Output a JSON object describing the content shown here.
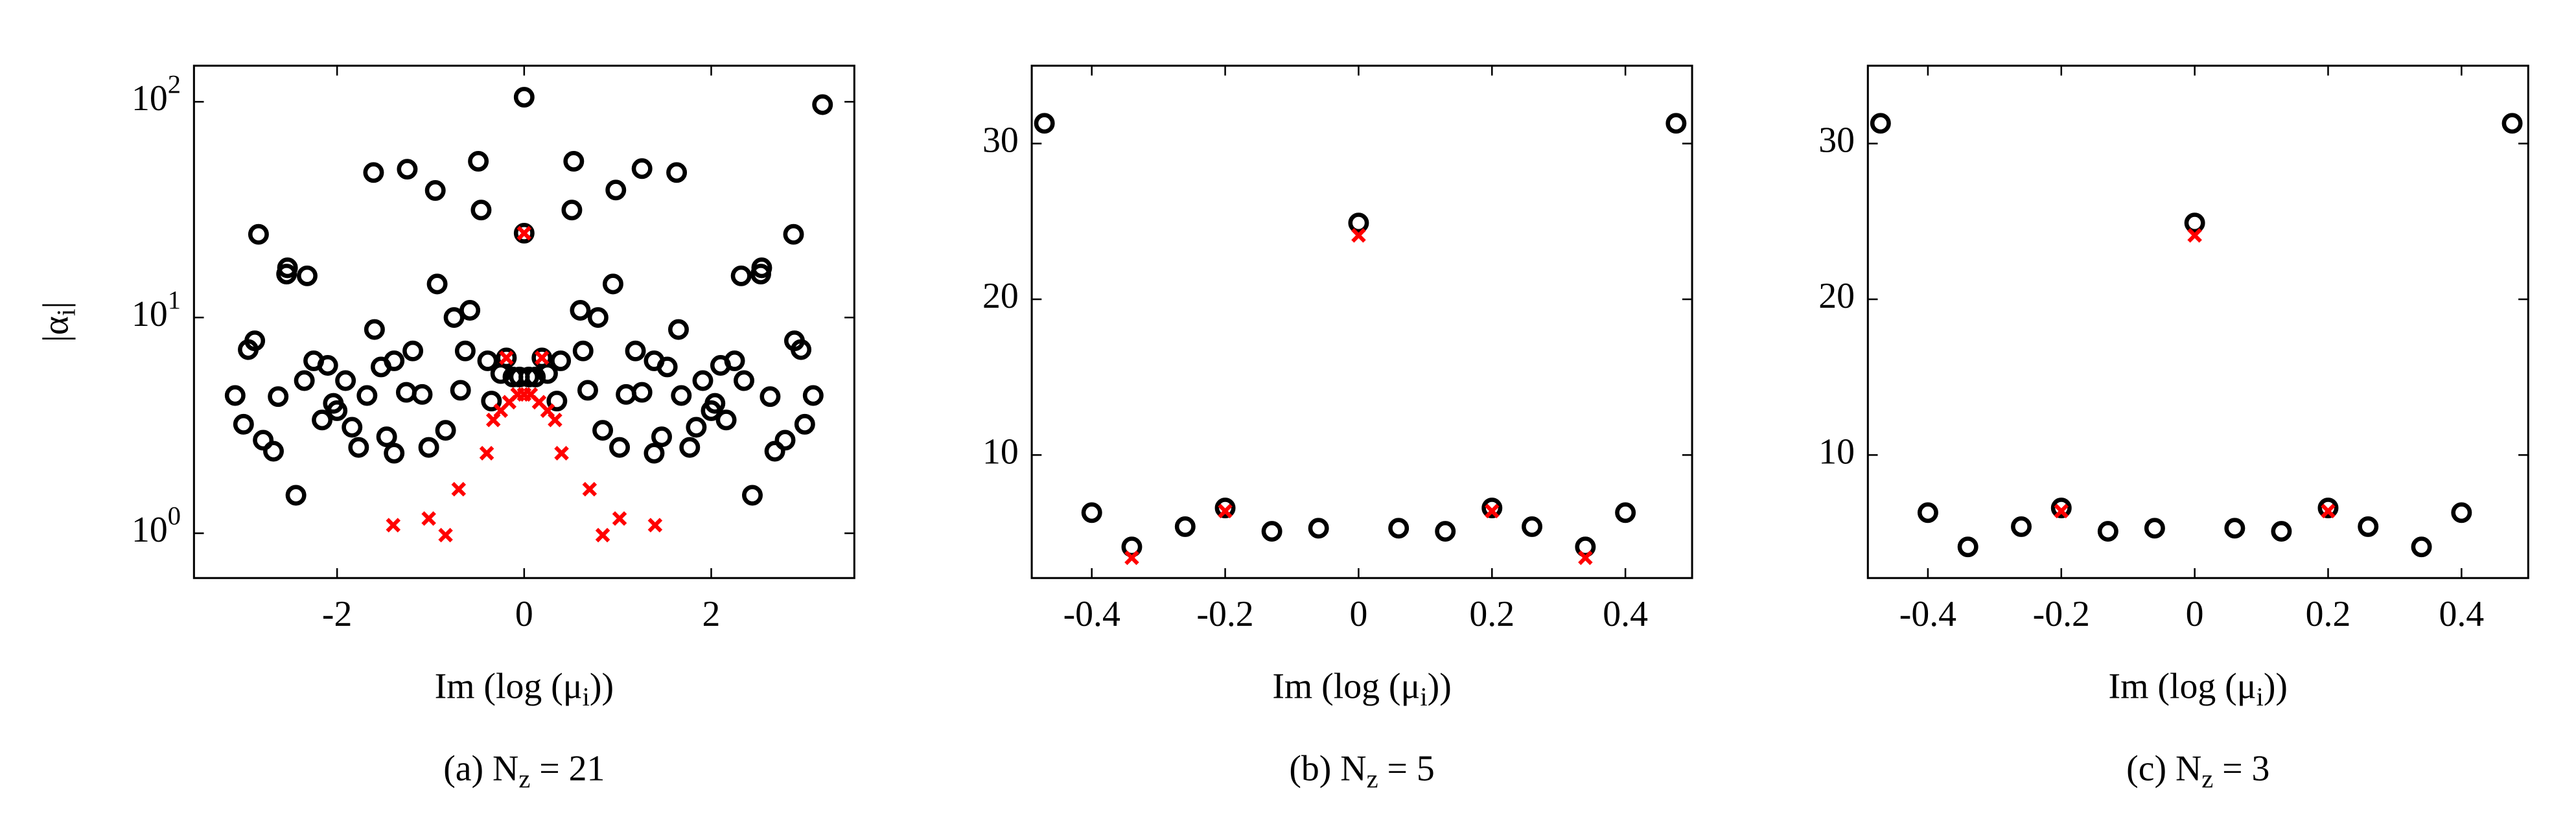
{
  "chart_data": [
    {
      "type": "scatter",
      "caption": "(a) N_z = 21",
      "xlabel": "Im (log (μ_i))",
      "ylabel": "|α_i|",
      "xlim": [
        -3.53,
        3.53
      ],
      "ylim": [
        0.62,
        147
      ],
      "yscale": "log",
      "xticks": [
        -2,
        0,
        2
      ],
      "yticks": [
        {
          "value": 1,
          "label": "10^0"
        },
        {
          "value": 10,
          "label": "10^1"
        },
        {
          "value": 100,
          "label": "10^2"
        }
      ],
      "series": [
        {
          "color": "#000000",
          "marker": "circle",
          "x": [
            0,
            3.19,
            -1.61,
            -1.25,
            -0.49,
            0.53,
            1.26,
            1.63,
            -0.95,
            0.98,
            -0.46,
            0.51,
            0,
            -2.84,
            2.88,
            -2.53,
            -2.54,
            -2.32,
            2.32,
            2.54,
            2.53,
            -0.93,
            0.95,
            -1.6,
            1.65,
            -0.58,
            -0.75,
            0.6,
            0.79,
            -2.88,
            -2.95,
            2.89,
            2.96,
            -2.25,
            -2.1,
            -1.39,
            -1.19,
            -1.53,
            2.25,
            2.1,
            1.39,
            1.19,
            1.53,
            -3.09,
            -3.0,
            -2.79,
            -2.68,
            -2.63,
            -2.35,
            -2.44,
            -2.16,
            -2.04,
            -2.0,
            -1.91,
            -1.84,
            -1.77,
            -1.68,
            -1.47,
            -1.39,
            -1.26,
            -1.09,
            -1.02,
            -0.84,
            -0.68,
            -0.63,
            -0.39,
            -0.35,
            -0.25,
            -0.19,
            -0.12,
            -0.05,
            3.09,
            3.0,
            2.79,
            2.68,
            2.63,
            2.35,
            2.44,
            2.16,
            2.04,
            2.0,
            1.91,
            1.84,
            1.77,
            1.68,
            1.47,
            1.39,
            1.26,
            1.09,
            1.02,
            0.84,
            0.68,
            0.63,
            0.39,
            0.35,
            0.25,
            0.19,
            0.12,
            0.05
          ],
          "values": [
            105,
            97,
            47,
            48.7,
            53,
            53,
            49,
            47,
            38.8,
            39,
            31.5,
            31.5,
            24.6,
            24.3,
            24.3,
            17,
            15.9,
            15.6,
            15.6,
            17,
            15.9,
            14.3,
            14.3,
            8.8,
            8.8,
            10.8,
            10,
            10.8,
            10,
            7.8,
            7.1,
            7.8,
            7.1,
            6.3,
            6,
            6.3,
            7,
            5.9,
            6.3,
            6,
            6.3,
            7,
            5.9,
            4.35,
            3.2,
            2.7,
            2.4,
            4.3,
            5.1,
            1.5,
            3.35,
            4.0,
            3.7,
            5.1,
            3.1,
            2.5,
            4.35,
            2.8,
            2.35,
            4.5,
            4.4,
            2.5,
            3.0,
            4.6,
            7,
            6.3,
            4.1,
            5.5,
            6.5,
            5.3,
            5.3,
            4.35,
            3.2,
            2.7,
            2.4,
            4.3,
            5.1,
            1.5,
            3.35,
            4.0,
            3.7,
            5.1,
            3.1,
            2.5,
            4.35,
            2.8,
            2.35,
            4.5,
            4.4,
            2.5,
            3.0,
            4.6,
            7,
            6.3,
            4.1,
            5.5,
            6.5,
            5.3,
            5.3
          ]
        },
        {
          "color": "#ff0000",
          "marker": "cross",
          "x": [
            0,
            -1.4,
            -1.02,
            -0.84,
            -0.7,
            -0.4,
            -0.33,
            -0.25,
            -0.16,
            -0.07,
            0,
            -0.19,
            0.19,
            0.07,
            0.16,
            0.25,
            0.33,
            0.4,
            0.7,
            0.84,
            1.02,
            1.4
          ],
          "values": [
            24.6,
            1.09,
            1.17,
            0.98,
            1.6,
            2.35,
            3.35,
            3.7,
            4.05,
            4.4,
            4.4,
            6.5,
            6.5,
            4.4,
            4.05,
            3.7,
            3.35,
            2.35,
            1.6,
            0.98,
            1.17,
            1.09
          ]
        }
      ]
    },
    {
      "type": "scatter",
      "caption": "(b) N_z = 5",
      "xlabel": "Im (log (μ_i))",
      "xlim": [
        -0.49,
        0.5
      ],
      "ylim": [
        2.1,
        35
      ],
      "xticks": [
        -0.4,
        -0.2,
        0,
        0.2,
        0.4
      ],
      "yticks": [
        10,
        20,
        30
      ],
      "series": [
        {
          "color": "#000000",
          "marker": "circle",
          "x": [
            -0.471,
            -0.4,
            -0.34,
            -0.26,
            -0.2,
            -0.13,
            -0.06,
            0,
            0.06,
            0.13,
            0.2,
            0.26,
            0.34,
            0.4,
            0.476
          ],
          "values": [
            31.3,
            6.3,
            4.1,
            5.4,
            6.6,
            5.1,
            5.3,
            24.9,
            5.3,
            5.1,
            6.6,
            5.4,
            4.1,
            6.3,
            31.3
          ]
        },
        {
          "color": "#ff0000",
          "marker": "cross",
          "x": [
            0,
            -0.2,
            0.2,
            -0.34,
            0.34
          ],
          "values": [
            24.1,
            6.4,
            6.4,
            3.4,
            3.4
          ]
        }
      ]
    },
    {
      "type": "scatter",
      "caption": "(c) N_z = 3",
      "xlabel": "Im (log (μ_i))",
      "xlim": [
        -0.49,
        0.5
      ],
      "ylim": [
        2.1,
        35
      ],
      "xticks": [
        -0.4,
        -0.2,
        0,
        0.2,
        0.4
      ],
      "yticks": [
        10,
        20,
        30
      ],
      "series": [
        {
          "color": "#000000",
          "marker": "circle",
          "x": [
            -0.471,
            -0.4,
            -0.34,
            -0.26,
            -0.2,
            -0.13,
            -0.06,
            0,
            0.06,
            0.13,
            0.2,
            0.26,
            0.34,
            0.4,
            0.476
          ],
          "values": [
            31.3,
            6.3,
            4.1,
            5.4,
            6.6,
            5.1,
            5.3,
            24.9,
            5.3,
            5.1,
            6.6,
            5.4,
            4.1,
            6.3,
            31.3
          ]
        },
        {
          "color": "#ff0000",
          "marker": "cross",
          "x": [
            0,
            -0.2,
            0.2
          ],
          "values": [
            24.1,
            6.4,
            6.4
          ]
        }
      ]
    }
  ]
}
